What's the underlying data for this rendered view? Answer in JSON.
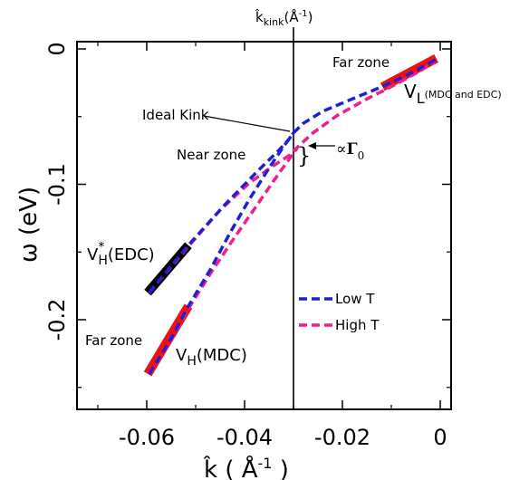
{
  "chart_data": {
    "type": "line",
    "xlabel": "k̂ ( Å⁻¹ )",
    "ylabel": "ω (eV)",
    "xlim": [
      -0.0755,
      0.0015
    ],
    "ylim": [
      -0.265,
      0.01
    ],
    "xticks": [
      -0.06,
      -0.04,
      -0.02,
      0
    ],
    "yticks": [
      0,
      -0.1,
      -0.2
    ],
    "xtick_labels": [
      "-0.06",
      "-0.04",
      "-0.02",
      "0"
    ],
    "ytick_labels": [
      "0",
      "-0.1",
      "-0.2"
    ],
    "legend_position": "lower-right",
    "kink_line": {
      "x": -0.03,
      "label": "k̂kink(Å⁻¹)"
    },
    "series": [
      {
        "name": "Low T",
        "color": "#1f1fd6",
        "style": "dashed",
        "branches": [
          {
            "x": [
              -0.0595,
              -0.052,
              -0.044,
              -0.037,
              -0.033,
              -0.031,
              -0.03,
              -0.028,
              -0.024,
              -0.018,
              -0.012,
              -0.006,
              -0.001
            ],
            "y": [
              -0.18,
              -0.147,
              -0.115,
              -0.089,
              -0.075,
              -0.067,
              -0.062,
              -0.055,
              -0.046,
              -0.037,
              -0.028,
              -0.018,
              -0.008
            ]
          },
          {
            "x": [
              -0.0595,
              -0.055,
              -0.0515,
              -0.047,
              -0.043,
              -0.039,
              -0.035,
              -0.032,
              -0.03
            ],
            "y": [
              -0.24,
              -0.214,
              -0.19,
              -0.163,
              -0.136,
              -0.111,
              -0.088,
              -0.072,
              -0.062
            ]
          }
        ]
      },
      {
        "name": "High T",
        "color": "#ee1f8c",
        "style": "dashed",
        "branches": [
          {
            "x": [
              -0.0595,
              -0.052,
              -0.045,
              -0.039,
              -0.034,
              -0.031,
              -0.029,
              -0.026,
              -0.021,
              -0.015,
              -0.009,
              -0.004,
              -0.001
            ],
            "y": [
              -0.18,
              -0.148,
              -0.119,
              -0.099,
              -0.086,
              -0.079,
              -0.072,
              -0.062,
              -0.049,
              -0.037,
              -0.026,
              -0.016,
              -0.009
            ]
          },
          {
            "x": [
              -0.0595,
              -0.055,
              -0.0515,
              -0.047,
              -0.042,
              -0.037,
              -0.033,
              -0.031,
              -0.029
            ],
            "y": [
              -0.24,
              -0.215,
              -0.192,
              -0.166,
              -0.139,
              -0.113,
              -0.092,
              -0.082,
              -0.072
            ]
          }
        ]
      }
    ],
    "velocity_segments": [
      {
        "label": "VH*(EDC)",
        "color": "#000000",
        "x": [
          -0.0598,
          -0.0515
        ],
        "y": [
          -0.18,
          -0.145
        ]
      },
      {
        "label": "VH(MDC)",
        "color": "#ee1111",
        "x": [
          -0.0598,
          -0.0515
        ],
        "y": [
          -0.24,
          -0.19
        ]
      },
      {
        "label": "VL",
        "color": "#ee1111",
        "x": [
          -0.0118,
          -0.0008
        ],
        "y": [
          -0.028,
          -0.007
        ]
      }
    ],
    "annotations": {
      "far_zone_top": "Far zone",
      "far_zone_bottom": "Far zone",
      "near_zone": "Near zone",
      "ideal_kink": "Ideal Kink",
      "proportional_symbol": "∝",
      "gamma_label": "Γ",
      "gamma_subscript": "0",
      "vl_main": "V",
      "vl_sub": "L",
      "vl_note": "(MDC and EDC)",
      "vh_star_main": "V",
      "vh_star_sup": "*",
      "vh_star_sub": "H",
      "vh_star_note": "(EDC)",
      "vh_main": "V",
      "vh_sub": "H",
      "vh_note": "(MDC)"
    },
    "kink_label": {
      "main": "k̂",
      "sub": "kink",
      "unit_open": "(Å",
      "unit_sup": "-1",
      "unit_close": ")"
    },
    "xlabel_parts": {
      "main": "k̂ ( Å",
      "sup": "-1",
      "close": " )"
    },
    "ylabel_text": "ω (eV)"
  }
}
